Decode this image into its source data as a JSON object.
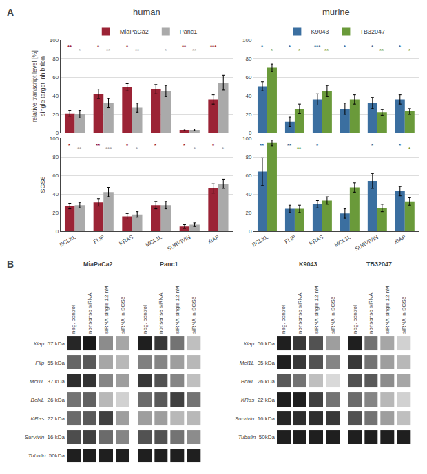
{
  "chart_data": [
    {
      "type": "bar",
      "title": "human",
      "panel_label": "A",
      "ylabel": "relative transcript level [%]\nsingle target inhibition",
      "categories": [
        "BCLXL",
        "FLIP",
        "KRAS",
        "MCL1L",
        "SURVIVIN",
        "XIAP"
      ],
      "series": [
        {
          "name": "MiaPaCa2",
          "color": "#9b2335",
          "values": [
            21,
            42,
            49,
            47,
            3,
            36
          ],
          "errors": [
            3,
            5,
            4,
            5,
            1,
            5
          ],
          "significance": [
            "**",
            "*",
            "*",
            null,
            "**",
            "***"
          ]
        },
        {
          "name": "Panc1",
          "color": "#aaaaaa",
          "values": [
            20,
            32,
            27,
            45,
            3,
            54
          ],
          "errors": [
            4,
            5,
            5,
            6,
            1,
            8
          ],
          "significance": [
            "*",
            "**",
            "**",
            "*",
            "**",
            null
          ]
        }
      ],
      "ylim": [
        0,
        100
      ],
      "yticks": [
        0,
        20,
        40,
        60,
        80,
        100
      ],
      "grid": true,
      "legend": "top",
      "tick_labels": "y"
    },
    {
      "type": "bar",
      "title": "murine",
      "categories": [
        "BCLXL",
        "FLIP",
        "KRAS",
        "MCL1L",
        "SURVIVIN",
        "XIAP"
      ],
      "series": [
        {
          "name": "K9043",
          "color": "#3b6fa0",
          "values": [
            50,
            12,
            36,
            26,
            32,
            36
          ],
          "errors": [
            5,
            5,
            6,
            6,
            6,
            5
          ],
          "significance": [
            "*",
            "*",
            "***",
            "*",
            "*",
            "*"
          ]
        },
        {
          "name": "TB32047",
          "color": "#6a9a3a",
          "values": [
            70,
            26,
            45,
            36,
            22,
            23
          ],
          "errors": [
            4,
            5,
            6,
            5,
            3,
            3
          ],
          "significance": [
            "*",
            "*",
            "**",
            null,
            "**",
            "*"
          ]
        }
      ],
      "ylim": [
        0,
        100
      ],
      "yticks": [
        0,
        20,
        40,
        60,
        80,
        100
      ],
      "grid": true,
      "legend": "top",
      "tick_labels": "y"
    },
    {
      "type": "bar",
      "ylabel": "SGS6",
      "categories": [
        "BCLXL",
        "FLIP",
        "KRAS",
        "MCL1L",
        "SURVIVIN",
        "XIAP"
      ],
      "series": [
        {
          "name": "MiaPaCa2",
          "color": "#9b2335",
          "values": [
            27,
            31,
            16,
            28,
            5,
            46
          ],
          "errors": [
            3,
            4,
            3,
            4,
            2,
            5
          ],
          "significance": [
            "*",
            "**",
            "*",
            "*",
            "*",
            "*"
          ]
        },
        {
          "name": "Panc1",
          "color": "#aaaaaa",
          "values": [
            28,
            42,
            18,
            28,
            7,
            51
          ],
          "errors": [
            3,
            5,
            3,
            4,
            2,
            5
          ],
          "significance": [
            "**",
            "***",
            "*",
            null,
            "*",
            "*"
          ]
        }
      ],
      "ylim": [
        0,
        100
      ],
      "yticks": [
        0,
        20,
        40,
        60,
        80,
        100
      ],
      "grid": true
    },
    {
      "type": "bar",
      "categories": [
        "BCLXL",
        "FLIP",
        "KRAS",
        "MCL1L",
        "SURVIVIN",
        "XIAP"
      ],
      "series": [
        {
          "name": "K9043",
          "color": "#3b6fa0",
          "values": [
            64,
            24,
            29,
            19,
            54,
            43
          ],
          "errors": [
            15,
            4,
            4,
            5,
            8,
            5
          ],
          "significance": [
            "**",
            "**",
            "*",
            null,
            "*",
            "*"
          ]
        },
        {
          "name": "TB32047",
          "color": "#6a9a3a",
          "values": [
            95,
            24,
            33,
            47,
            25,
            32
          ],
          "errors": [
            3,
            4,
            4,
            5,
            4,
            4
          ],
          "significance": [
            "*",
            "**",
            null,
            null,
            null,
            "*"
          ]
        }
      ],
      "ylim": [
        0,
        100
      ],
      "yticks": [
        0,
        20,
        40,
        60,
        80,
        100
      ],
      "grid": true
    },
    {
      "type": "heatmap",
      "title": "MiaPaCa2",
      "panel_label": "B",
      "categories": [
        "neg. control",
        "nonsense siRNA",
        "siRNA single 12 nM",
        "siRNA in SGS6"
      ],
      "rows": [
        [
          "Xiap",
          "57 kDa"
        ],
        [
          "Flip",
          "55 kDa"
        ],
        [
          "Mcl1L",
          "37 kDa"
        ],
        [
          "BclxL",
          "26 kDa"
        ],
        [
          "KRas",
          "22 kDa"
        ],
        [
          "Survivin",
          "16 kDa"
        ],
        [
          "Tubulin",
          "50kDa"
        ]
      ],
      "cells": [
        [
          0.85,
          0.9,
          0.45,
          0.35
        ],
        [
          0.6,
          0.65,
          0.35,
          0.28
        ],
        [
          0.82,
          0.8,
          0.48,
          0.38
        ],
        [
          0.55,
          0.62,
          0.28,
          0.18
        ],
        [
          0.58,
          0.65,
          0.75,
          0.38
        ],
        [
          0.7,
          0.75,
          0.58,
          0.48
        ],
        [
          0.88,
          0.88,
          0.88,
          0.88
        ]
      ],
      "zlim": [
        0,
        1
      ]
    },
    {
      "type": "heatmap",
      "title": "Panc1",
      "categories": [
        "neg. control",
        "nonsense siRNA",
        "siRNA single 12 nM",
        "siRNA in SGS6"
      ],
      "cells": [
        [
          0.88,
          0.78,
          0.55,
          0.25
        ],
        [
          0.5,
          0.48,
          0.38,
          0.28
        ],
        [
          0.78,
          0.68,
          0.48,
          0.25
        ],
        [
          0.58,
          0.65,
          0.75,
          0.55
        ],
        [
          0.38,
          0.38,
          0.28,
          0.28
        ],
        [
          0.68,
          0.68,
          0.55,
          0.45
        ],
        [
          0.88,
          0.88,
          0.88,
          0.88
        ]
      ],
      "zlim": [
        0,
        1
      ],
      "tick_labels": "x"
    },
    {
      "type": "heatmap",
      "title": "K9043",
      "categories": [
        "neg. control",
        "nonsense siRNA",
        "siRNA single 12 nM",
        "siRNA in SGS6"
      ],
      "rows": [
        [
          "Xiap",
          "56 kDa"
        ],
        [
          "Mcl1L",
          "35 kDa"
        ],
        [
          "BclxL",
          "26 kDa"
        ],
        [
          "KRas",
          "22 kDa"
        ],
        [
          "Survivin",
          "16 kDa"
        ],
        [
          "Tubulin",
          "50kDa"
        ]
      ],
      "cells": [
        [
          0.88,
          0.78,
          0.68,
          0.38
        ],
        [
          0.88,
          0.78,
          0.68,
          0.48
        ],
        [
          0.65,
          0.55,
          0.25,
          0.15
        ],
        [
          0.88,
          0.88,
          0.75,
          0.55
        ],
        [
          0.85,
          0.82,
          0.82,
          0.78
        ],
        [
          0.88,
          0.88,
          0.88,
          0.88
        ]
      ],
      "zlim": [
        0,
        1
      ]
    },
    {
      "type": "heatmap",
      "title": "TB32047",
      "categories": [
        "neg. control",
        "nonsense siRNA",
        "siRNA single 12 nM",
        "siRNA in SGS6"
      ],
      "cells": [
        [
          0.88,
          0.55,
          0.35,
          0.18
        ],
        [
          0.78,
          0.55,
          0.38,
          0.28
        ],
        [
          0.68,
          0.65,
          0.45,
          0.35
        ],
        [
          0.58,
          0.48,
          0.28,
          0.18
        ],
        [
          0.68,
          0.55,
          0.38,
          0.25
        ],
        [
          0.88,
          0.88,
          0.88,
          0.88
        ]
      ],
      "zlim": [
        0,
        1
      ],
      "tick_labels": "x"
    }
  ]
}
